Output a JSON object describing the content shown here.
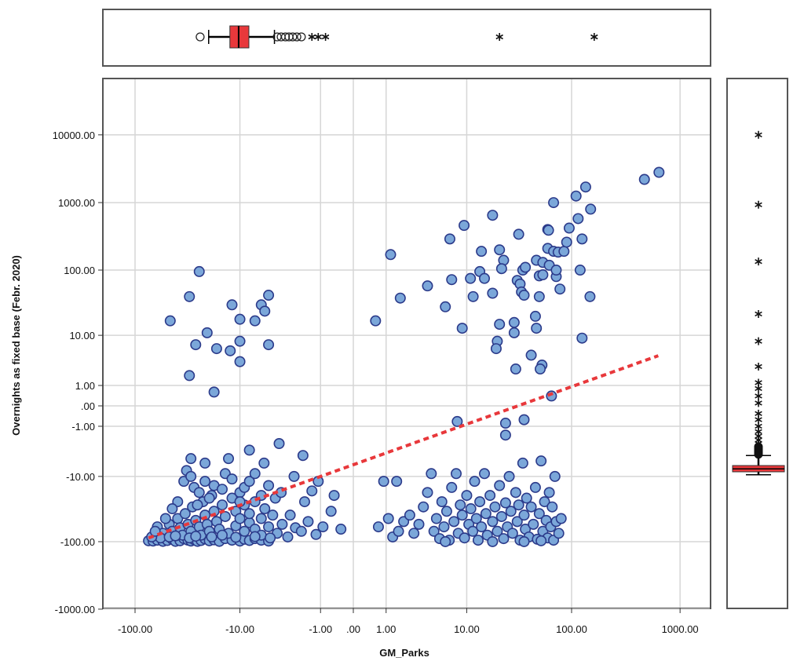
{
  "chart_data": {
    "type": "scatter",
    "xlabel": "GM_Parks",
    "ylabel": "Overnights as fixed base (Febr. 2020)",
    "x_scale": "signed-log (sign*log10(1+|v|))",
    "y_scale": "signed-log (sign*log10(1+|v|))",
    "xlim": [
      -200,
      1500
    ],
    "ylim": [
      -1000,
      50000
    ],
    "grid": true,
    "x_ticks": [
      {
        "v": -100,
        "label": "-100.00"
      },
      {
        "v": -10,
        "label": "-10.00"
      },
      {
        "v": -1,
        "label": "-1.00"
      },
      {
        "v": 0,
        "label": ".00"
      },
      {
        "v": 1,
        "label": "1.00"
      },
      {
        "v": 10,
        "label": "10.00"
      },
      {
        "v": 100,
        "label": "100.00"
      },
      {
        "v": 1000,
        "label": "1000.00"
      }
    ],
    "y_ticks": [
      {
        "v": 10000,
        "label": "10000.00"
      },
      {
        "v": 1000,
        "label": "1000.00"
      },
      {
        "v": 100,
        "label": "100.00"
      },
      {
        "v": 10,
        "label": "10.00"
      },
      {
        "v": 1,
        "label": "1.00"
      },
      {
        "v": 0,
        "label": ".00"
      },
      {
        "v": -1,
        "label": "-1.00"
      },
      {
        "v": -10,
        "label": "-10.00"
      },
      {
        "v": -100,
        "label": "-100.00"
      },
      {
        "v": -1000,
        "label": "-1000.00"
      }
    ],
    "colors": {
      "point_fill": "#7ba7d9",
      "point_edge": "#2b3a8a",
      "fit_line": "#e8383b",
      "box_fill": "#e8383b"
    },
    "fit_line": {
      "style": "dashed",
      "from": [
        -75,
        -88
      ],
      "to": [
        630,
        4.5
      ]
    },
    "points": [
      [
        -25,
        95
      ],
      [
        -31,
        40
      ],
      [
        -47,
        17
      ],
      [
        -27,
        7
      ],
      [
        -21,
        11
      ],
      [
        -17,
        6
      ],
      [
        -12.5,
        5.5
      ],
      [
        -12,
        30
      ],
      [
        -10,
        8
      ],
      [
        -10,
        18
      ],
      [
        -10,
        3.5
      ],
      [
        -7,
        17
      ],
      [
        -6,
        30
      ],
      [
        -5.5,
        24
      ],
      [
        -5,
        42
      ],
      [
        -5,
        7
      ],
      [
        -31,
        1.8
      ],
      [
        -18,
        0.6
      ],
      [
        1.2,
        170
      ],
      [
        0.6,
        17
      ],
      [
        1.7,
        38
      ],
      [
        3.8,
        58
      ],
      [
        6.7,
        290
      ],
      [
        7,
        72
      ],
      [
        6,
        28
      ],
      [
        9.4,
        460
      ],
      [
        9,
        13
      ],
      [
        10.9,
        75
      ],
      [
        11.6,
        40
      ],
      [
        14,
        190
      ],
      [
        13.5,
        95
      ],
      [
        18,
        650
      ],
      [
        18,
        45
      ],
      [
        15,
        75
      ],
      [
        21,
        200
      ],
      [
        23,
        140
      ],
      [
        22,
        105
      ],
      [
        21,
        15
      ],
      [
        20,
        8
      ],
      [
        19.5,
        6
      ],
      [
        29,
        16
      ],
      [
        29,
        11
      ],
      [
        32,
        340
      ],
      [
        31,
        70
      ],
      [
        33,
        62
      ],
      [
        34,
        47
      ],
      [
        30,
        2.5
      ],
      [
        35,
        100
      ],
      [
        37,
        110
      ],
      [
        36,
        42
      ],
      [
        42,
        4.6
      ],
      [
        47,
        140
      ],
      [
        50,
        82
      ],
      [
        50,
        40
      ],
      [
        46,
        20
      ],
      [
        47,
        13
      ],
      [
        54,
        85
      ],
      [
        53,
        3
      ],
      [
        51,
        2.5
      ],
      [
        54,
        130
      ],
      [
        60,
        210
      ],
      [
        60,
        400
      ],
      [
        61,
        390
      ],
      [
        62,
        118
      ],
      [
        65,
        0.4
      ],
      [
        68,
        1000
      ],
      [
        72,
        80
      ],
      [
        72,
        100
      ],
      [
        68,
        190
      ],
      [
        75,
        185
      ],
      [
        78,
        52
      ],
      [
        85,
        190
      ],
      [
        95,
        420
      ],
      [
        90,
        260
      ],
      [
        110,
        1250
      ],
      [
        115,
        580
      ],
      [
        125,
        290
      ],
      [
        120,
        100
      ],
      [
        125,
        9
      ],
      [
        135,
        1700
      ],
      [
        150,
        800
      ],
      [
        148,
        40
      ],
      [
        470,
        2200
      ],
      [
        640,
        2800
      ],
      [
        -75,
        -97
      ],
      [
        -68,
        -98
      ],
      [
        -62,
        -95
      ],
      [
        -55,
        -99
      ],
      [
        -50,
        -96
      ],
      [
        -45,
        -92
      ],
      [
        -42,
        -99
      ],
      [
        -38,
        -97
      ],
      [
        -35,
        -90
      ],
      [
        -32,
        -95
      ],
      [
        -30,
        -98
      ],
      [
        -28,
        -93
      ],
      [
        -26,
        -99
      ],
      [
        -24,
        -96
      ],
      [
        -22,
        -91
      ],
      [
        -20,
        -97
      ],
      [
        -18,
        -94
      ],
      [
        -16,
        -99
      ],
      [
        -14,
        -90
      ],
      [
        -12,
        -95
      ],
      [
        -10,
        -98
      ],
      [
        -9,
        -92
      ],
      [
        -8,
        -96
      ],
      [
        -7,
        -90
      ],
      [
        -6,
        -95
      ],
      [
        -5,
        -98
      ],
      [
        -62,
        -60
      ],
      [
        -55,
        -75
      ],
      [
        -48,
        -55
      ],
      [
        -45,
        -70
      ],
      [
        -40,
        -45
      ],
      [
        -38,
        -62
      ],
      [
        -36,
        -80
      ],
      [
        -34,
        -38
      ],
      [
        -32,
        -55
      ],
      [
        -30,
        -70
      ],
      [
        -29,
        -30
      ],
      [
        -27,
        -48
      ],
      [
        -25,
        -60
      ],
      [
        -24,
        -80
      ],
      [
        -23,
        -25
      ],
      [
        -22,
        -40
      ],
      [
        -21,
        -55
      ],
      [
        -20,
        -70
      ],
      [
        -19,
        -20
      ],
      [
        -18,
        -35
      ],
      [
        -17,
        -50
      ],
      [
        -16,
        -65
      ],
      [
        -15,
        -28
      ],
      [
        -14,
        -42
      ],
      [
        -13,
        -75
      ],
      [
        -12,
        -22
      ],
      [
        -11,
        -35
      ],
      [
        -11,
        -58
      ],
      [
        -10,
        -18
      ],
      [
        -10,
        -45
      ],
      [
        -9,
        -70
      ],
      [
        -9,
        -28
      ],
      [
        -8,
        -52
      ],
      [
        -8,
        -38
      ],
      [
        -7,
        -65
      ],
      [
        -7,
        -25
      ],
      [
        -6,
        -45
      ],
      [
        -6,
        -80
      ],
      [
        -5.5,
        -32
      ],
      [
        -5,
        -60
      ],
      [
        -4.5,
        -40
      ],
      [
        -4,
        -75
      ],
      [
        -3.5,
        -55
      ],
      [
        -3,
        -85
      ],
      [
        -2.8,
        -40
      ],
      [
        -2.4,
        -62
      ],
      [
        -2,
        -70
      ],
      [
        -1.6,
        -50
      ],
      [
        -1.2,
        -78
      ],
      [
        -0.9,
        -60
      ],
      [
        -0.6,
        -35
      ],
      [
        -0.3,
        -65
      ],
      [
        -35,
        -12
      ],
      [
        -33,
        -8
      ],
      [
        -30,
        -10
      ],
      [
        -28,
        -15
      ],
      [
        -25,
        -18
      ],
      [
        -22,
        -12
      ],
      [
        -20,
        -22
      ],
      [
        -18,
        -14
      ],
      [
        -15,
        -16
      ],
      [
        -14,
        -9
      ],
      [
        -12,
        -11
      ],
      [
        -10,
        -25
      ],
      [
        -9,
        -15
      ],
      [
        -8,
        -12
      ],
      [
        -7,
        -9
      ],
      [
        -6,
        -20
      ],
      [
        -5,
        -14
      ],
      [
        -4.2,
        -22
      ],
      [
        -3.6,
        -18
      ],
      [
        -2.5,
        -10
      ],
      [
        -1.8,
        -25
      ],
      [
        -1.4,
        -17
      ],
      [
        -30,
        -5
      ],
      [
        -22,
        -6
      ],
      [
        -13,
        -5
      ],
      [
        -8,
        -3.5
      ],
      [
        -5.6,
        -6
      ],
      [
        -3.8,
        -2.6
      ],
      [
        -1.9,
        -4.4
      ],
      [
        -1.1,
        -12
      ],
      [
        -0.5,
        -20
      ],
      [
        -26,
        -28
      ],
      [
        -40,
        -25
      ],
      [
        -45,
        -32
      ],
      [
        -52,
        -45
      ],
      [
        -58,
        -88
      ],
      [
        -70,
        -85
      ],
      [
        -65,
        -70
      ],
      [
        -48,
        -85
      ],
      [
        -42,
        -82
      ],
      [
        -31,
        -88
      ],
      [
        -27,
        -83
      ],
      [
        -19,
        -85
      ],
      [
        -15,
        -80
      ],
      [
        -11,
        -86
      ],
      [
        -7,
        -84
      ],
      [
        -4.8,
        -88
      ],
      [
        0.7,
        -60
      ],
      [
        0.9,
        -12
      ],
      [
        1.1,
        -45
      ],
      [
        1.3,
        -85
      ],
      [
        1.5,
        -12
      ],
      [
        1.6,
        -70
      ],
      [
        1.9,
        -50
      ],
      [
        2.3,
        -40
      ],
      [
        2.6,
        -75
      ],
      [
        3,
        -55
      ],
      [
        3.4,
        -30
      ],
      [
        3.8,
        -18
      ],
      [
        4.2,
        -9
      ],
      [
        4.5,
        -70
      ],
      [
        4.8,
        -45
      ],
      [
        5.2,
        -90
      ],
      [
        5.5,
        -25
      ],
      [
        5.8,
        -60
      ],
      [
        6.2,
        -35
      ],
      [
        6.6,
        -95
      ],
      [
        7,
        -15
      ],
      [
        7.4,
        -50
      ],
      [
        7.8,
        -9
      ],
      [
        8.2,
        -75
      ],
      [
        8.6,
        -28
      ],
      [
        9,
        -40
      ],
      [
        9.5,
        -88
      ],
      [
        10,
        -20
      ],
      [
        10.5,
        -55
      ],
      [
        11,
        -32
      ],
      [
        11.5,
        -70
      ],
      [
        12,
        -12
      ],
      [
        12.5,
        -45
      ],
      [
        13,
        -95
      ],
      [
        13.5,
        -25
      ],
      [
        14,
        -60
      ],
      [
        15,
        -9
      ],
      [
        15.5,
        -38
      ],
      [
        16,
        -80
      ],
      [
        17,
        -20
      ],
      [
        18,
        -50
      ],
      [
        19,
        -30
      ],
      [
        20,
        -70
      ],
      [
        21,
        -14
      ],
      [
        22,
        -42
      ],
      [
        23,
        -90
      ],
      [
        24,
        -26
      ],
      [
        25,
        -60
      ],
      [
        26,
        -10
      ],
      [
        27,
        -35
      ],
      [
        28,
        -75
      ],
      [
        30,
        -18
      ],
      [
        31,
        -50
      ],
      [
        32,
        -28
      ],
      [
        33,
        -95
      ],
      [
        35,
        -6
      ],
      [
        36,
        -40
      ],
      [
        37,
        -65
      ],
      [
        38,
        -22
      ],
      [
        40,
        -85
      ],
      [
        42,
        -30
      ],
      [
        44,
        -55
      ],
      [
        46,
        -15
      ],
      [
        48,
        -92
      ],
      [
        50,
        -38
      ],
      [
        52,
        -5.5
      ],
      [
        54,
        -70
      ],
      [
        56,
        -25
      ],
      [
        58,
        -48
      ],
      [
        60,
        -88
      ],
      [
        62,
        -18
      ],
      [
        64,
        -60
      ],
      [
        66,
        -30
      ],
      [
        68,
        -95
      ],
      [
        70,
        -10
      ],
      [
        72,
        -50
      ],
      [
        76,
        -75
      ],
      [
        80,
        -45
      ],
      [
        6,
        -100
      ],
      [
        18,
        -100
      ],
      [
        36,
        -100
      ],
      [
        52,
        -97
      ],
      [
        8,
        -0.7
      ],
      [
        24,
        -0.8
      ],
      [
        24,
        -1.7
      ],
      [
        36,
        -0.6
      ]
    ],
    "x_boxplot": {
      "whisker_low": -20.3,
      "q1": -12.6,
      "median": -10.3,
      "q3": -8.1,
      "whisker_high": -4.3,
      "outliers_circle": [
        -24.5,
        -4.0,
        -3.6,
        -3.2,
        -2.9,
        -2.6,
        -2.3,
        -2.0
      ],
      "outliers_star": [
        -1.4,
        -1.1,
        -0.8,
        21,
        162
      ]
    },
    "y_boxplot": {
      "whisker_low": -9.4,
      "q1": -8.4,
      "median": -7.5,
      "q3": -6.6,
      "whisker_high": -4.4,
      "outliers_circle": [
        -4.2,
        -4.0,
        -3.8,
        -3.6,
        -3.4,
        -3.2,
        -3.0
      ],
      "outliers_star": [
        10000,
        930,
        134,
        21.7,
        8,
        2.8,
        1.2,
        0.8,
        0.4,
        0.1,
        -0.3,
        -0.6,
        -1.0,
        -1.4,
        -1.8,
        -2.2,
        -2.6
      ]
    }
  }
}
